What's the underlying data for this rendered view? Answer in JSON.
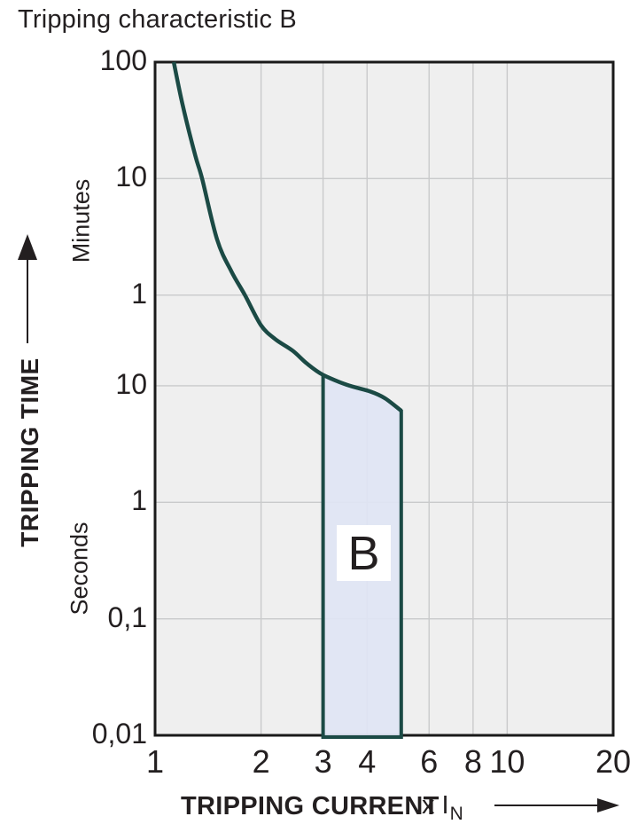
{
  "chart_data": {
    "type": "line",
    "title": "Tripping characteristic B",
    "x_axis": {
      "label": "TRIPPING CURRENT",
      "multiplier": "x I",
      "multiplier_sub": "N",
      "scale": "log",
      "range": [
        1,
        20
      ],
      "ticks": [
        {
          "label": "1",
          "value": 1
        },
        {
          "label": "2",
          "value": 2
        },
        {
          "label": "3",
          "value": 3
        },
        {
          "label": "4",
          "value": 4
        },
        {
          "label": "6",
          "value": 6
        },
        {
          "label": "8",
          "value": 8
        },
        {
          "label": "10",
          "value": 10
        },
        {
          "label": "20",
          "value": 20
        }
      ],
      "gridlines": [
        2,
        3,
        4,
        6,
        8,
        10
      ]
    },
    "y_axis": {
      "label": "TRIPPING TIME",
      "scale": "log",
      "range_seconds": [
        0.01,
        6000
      ],
      "unit_sections": [
        "Minutes",
        "Seconds"
      ],
      "ticks": [
        {
          "label": "100",
          "unit": "minutes",
          "seconds": 6000
        },
        {
          "label": "10",
          "unit": "minutes",
          "seconds": 600
        },
        {
          "label": "1",
          "unit": "minutes",
          "seconds": 60
        },
        {
          "label": "10",
          "unit": "seconds",
          "seconds": 10
        },
        {
          "label": "1",
          "unit": "seconds",
          "seconds": 1
        },
        {
          "label": "0,1",
          "unit": "seconds",
          "seconds": 0.1
        },
        {
          "label": "0,01",
          "unit": "seconds",
          "seconds": 0.01
        }
      ],
      "gridlines_seconds": [
        600,
        60,
        10,
        1,
        0.1
      ]
    },
    "curve": {
      "name": "tripping-curve",
      "points_x_in_time_s": [
        [
          1.13,
          6000
        ],
        [
          1.2,
          2500
        ],
        [
          1.3,
          950
        ],
        [
          1.36,
          600
        ],
        [
          1.5,
          180
        ],
        [
          1.65,
          95
        ],
        [
          1.8,
          60
        ],
        [
          2.0,
          33
        ],
        [
          2.2,
          25
        ],
        [
          2.46,
          20
        ],
        [
          2.7,
          15.5
        ],
        [
          3.0,
          12.4
        ],
        [
          3.5,
          10.2
        ],
        [
          4.1,
          8.9
        ],
        [
          4.5,
          7.8
        ],
        [
          5.0,
          6.1
        ]
      ]
    },
    "band": {
      "label": "B",
      "x_min": 3,
      "x_max": 5,
      "bottom_seconds": 0.01
    },
    "colors": {
      "curve": "#1b4a45",
      "band_fill": "#dfe5f4",
      "band_label_bg": "#ffffff",
      "plot_bg": "#efefef",
      "gridline": "#c9cacb",
      "frame": "#1a1a1a",
      "text": "#231f20"
    }
  },
  "labels": {
    "unit_minutes": "Minutes",
    "unit_seconds": "Seconds",
    "y_axis_title": "TRIPPING TIME",
    "x_axis_title": "TRIPPING CURRENT",
    "x_multiplier": "x I",
    "x_multiplier_sub": "N",
    "band_label": "B"
  }
}
